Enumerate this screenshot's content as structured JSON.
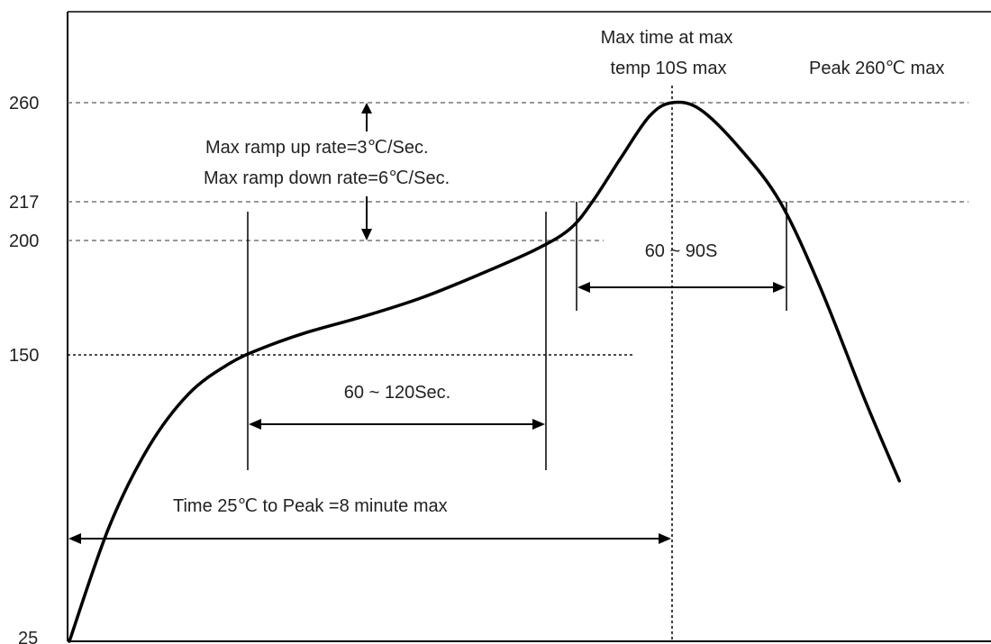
{
  "chart_data": {
    "type": "line",
    "title": "",
    "xlabel": "",
    "ylabel": "",
    "y_ticks": [
      "25",
      "150",
      "200",
      "217",
      "260"
    ],
    "series": [
      {
        "values": [
          [
            0,
            25
          ],
          [
            0.35,
            75
          ],
          [
            0.7,
            110
          ],
          [
            1.05,
            133
          ],
          [
            1.4,
            146
          ],
          [
            1.7,
            153
          ],
          [
            2.1,
            160
          ],
          [
            2.6,
            167
          ],
          [
            3.1,
            175
          ],
          [
            3.6,
            185
          ],
          [
            4.1,
            196
          ],
          [
            4.4,
            205
          ],
          [
            4.6,
            217
          ],
          [
            4.85,
            236
          ],
          [
            5.1,
            254
          ],
          [
            5.3,
            260
          ],
          [
            5.55,
            257
          ],
          [
            5.9,
            240
          ],
          [
            6.25,
            217
          ],
          [
            6.6,
            180
          ],
          [
            7.0,
            130
          ],
          [
            7.3,
            95
          ]
        ]
      }
    ],
    "reference_lines": [
      {
        "y": 260,
        "style": "dashed"
      },
      {
        "y": 217,
        "style": "dashed"
      },
      {
        "y": 200,
        "style": "dashed"
      },
      {
        "y": 150,
        "style": "dotted"
      }
    ],
    "annotations": {
      "peak_time_line1": "Max time at max",
      "peak_time_line2": "temp 10S max",
      "peak": "Peak 260℃ max",
      "ramp_up": "Max ramp up rate=3℃/Sec.",
      "ramp_down": "Max ramp down rate=6℃/Sec.",
      "liquidus_time": "60 ~ 90S",
      "soak_time": "60 ~ 120Sec.",
      "total_time": "Time 25℃ to Peak =8 minute max"
    }
  }
}
